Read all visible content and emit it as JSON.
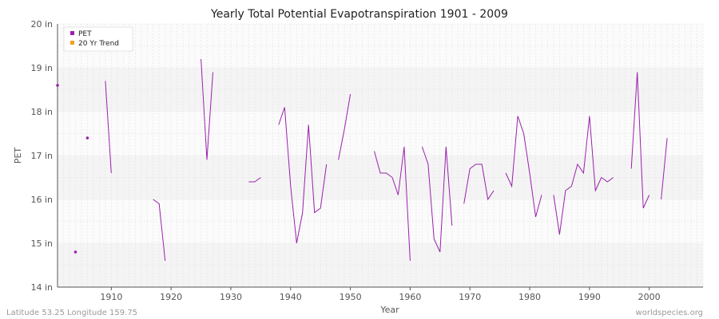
{
  "chart_data": {
    "type": "line",
    "title": "Yearly Total Potential Evapotranspiration 1901 - 2009",
    "xlabel": "Year",
    "ylabel": "PET",
    "xlim": [
      1901,
      2009
    ],
    "ylim": [
      14,
      20
    ],
    "x_ticks": [
      1910,
      1920,
      1930,
      1940,
      1950,
      1960,
      1970,
      1980,
      1990,
      2000
    ],
    "y_ticks": [
      14,
      15,
      16,
      17,
      18,
      19,
      20
    ],
    "y_tick_labels": [
      "14 in",
      "15 in",
      "16 in",
      "17 in",
      "18 in",
      "19 in",
      "20 in"
    ],
    "grid": true,
    "legend_position": "top-left",
    "legend": [
      {
        "label": "PET",
        "color": "#9b1fae"
      },
      {
        "label": "20 Yr Trend",
        "color": "#f0a020"
      }
    ],
    "series": [
      {
        "name": "PET",
        "color": "#9b1fae",
        "points": [
          [
            1901,
            18.6
          ],
          [
            1904,
            14.8
          ],
          [
            1906,
            17.4
          ],
          [
            1909,
            18.7
          ],
          [
            1910,
            16.6
          ],
          [
            1917,
            16.0
          ],
          [
            1918,
            15.9
          ],
          [
            1919,
            14.6
          ],
          [
            1925,
            19.2
          ],
          [
            1926,
            16.9
          ],
          [
            1927,
            18.9
          ],
          [
            1933,
            16.4
          ],
          [
            1934,
            16.4
          ],
          [
            1935,
            16.5
          ],
          [
            1938,
            17.7
          ],
          [
            1939,
            18.1
          ],
          [
            1940,
            16.3
          ],
          [
            1941,
            15.0
          ],
          [
            1942,
            15.7
          ],
          [
            1943,
            17.7
          ],
          [
            1944,
            15.7
          ],
          [
            1945,
            15.8
          ],
          [
            1946,
            16.8
          ],
          [
            1948,
            16.9
          ],
          [
            1949,
            17.6
          ],
          [
            1950,
            18.4
          ],
          [
            1954,
            17.1
          ],
          [
            1955,
            16.6
          ],
          [
            1956,
            16.6
          ],
          [
            1957,
            16.5
          ],
          [
            1958,
            16.1
          ],
          [
            1959,
            17.2
          ],
          [
            1960,
            14.6
          ],
          [
            1962,
            17.2
          ],
          [
            1963,
            16.8
          ],
          [
            1964,
            15.1
          ],
          [
            1965,
            14.8
          ],
          [
            1966,
            17.2
          ],
          [
            1967,
            15.4
          ],
          [
            1969,
            15.9
          ],
          [
            1970,
            16.7
          ],
          [
            1971,
            16.8
          ],
          [
            1972,
            16.8
          ],
          [
            1973,
            16.0
          ],
          [
            1974,
            16.2
          ],
          [
            1976,
            16.6
          ],
          [
            1977,
            16.3
          ],
          [
            1978,
            17.9
          ],
          [
            1979,
            17.5
          ],
          [
            1980,
            16.6
          ],
          [
            1981,
            15.6
          ],
          [
            1982,
            16.1
          ],
          [
            1984,
            16.1
          ],
          [
            1985,
            15.2
          ],
          [
            1986,
            16.2
          ],
          [
            1987,
            16.3
          ],
          [
            1988,
            16.8
          ],
          [
            1989,
            16.6
          ],
          [
            1990,
            17.9
          ],
          [
            1991,
            16.2
          ],
          [
            1992,
            16.5
          ],
          [
            1993,
            16.4
          ],
          [
            1994,
            16.5
          ],
          [
            1997,
            16.7
          ],
          [
            1998,
            18.9
          ],
          [
            1999,
            15.8
          ],
          [
            2000,
            16.1
          ],
          [
            2002,
            16.0
          ],
          [
            2003,
            17.4
          ]
        ]
      }
    ],
    "footer_left": "Latitude 53.25 Longitude 159.75",
    "footer_right": "worldspecies.org"
  }
}
